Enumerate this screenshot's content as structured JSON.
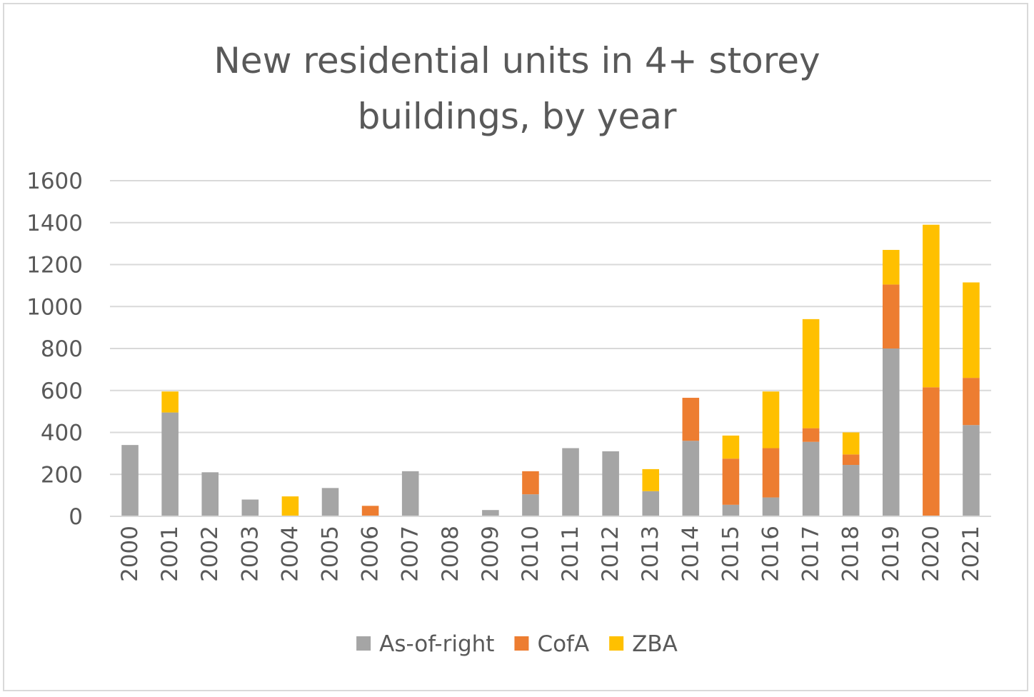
{
  "chart_data": {
    "type": "bar",
    "stacked": true,
    "title": "New residential units in 4+ storey\nbuildings, by year",
    "xlabel": "",
    "ylabel": "",
    "ylim": [
      0,
      1600
    ],
    "yticks": [
      0,
      200,
      400,
      600,
      800,
      1000,
      1200,
      1400,
      1600
    ],
    "grid": true,
    "legend_position": "bottom",
    "categories": [
      "2000",
      "2001",
      "2002",
      "2003",
      "2004",
      "2005",
      "2006",
      "2007",
      "2008",
      "2009",
      "2010",
      "2011",
      "2012",
      "2013",
      "2014",
      "2015",
      "2016",
      "2017",
      "2018",
      "2019",
      "2020",
      "2021"
    ],
    "series": [
      {
        "name": "As-of-right",
        "color": "#a5a5a5",
        "values": [
          340,
          495,
          210,
          80,
          0,
          135,
          0,
          215,
          0,
          30,
          105,
          325,
          310,
          120,
          360,
          55,
          90,
          355,
          245,
          800,
          0,
          435
        ]
      },
      {
        "name": "CofA",
        "color": "#ed7d31",
        "values": [
          0,
          0,
          0,
          0,
          0,
          0,
          50,
          0,
          0,
          0,
          110,
          0,
          0,
          0,
          205,
          220,
          235,
          65,
          50,
          305,
          615,
          225
        ]
      },
      {
        "name": "ZBA",
        "color": "#ffc000",
        "values": [
          0,
          100,
          0,
          0,
          95,
          0,
          0,
          0,
          0,
          0,
          0,
          0,
          0,
          105,
          0,
          110,
          270,
          520,
          105,
          165,
          775,
          455
        ]
      }
    ]
  }
}
